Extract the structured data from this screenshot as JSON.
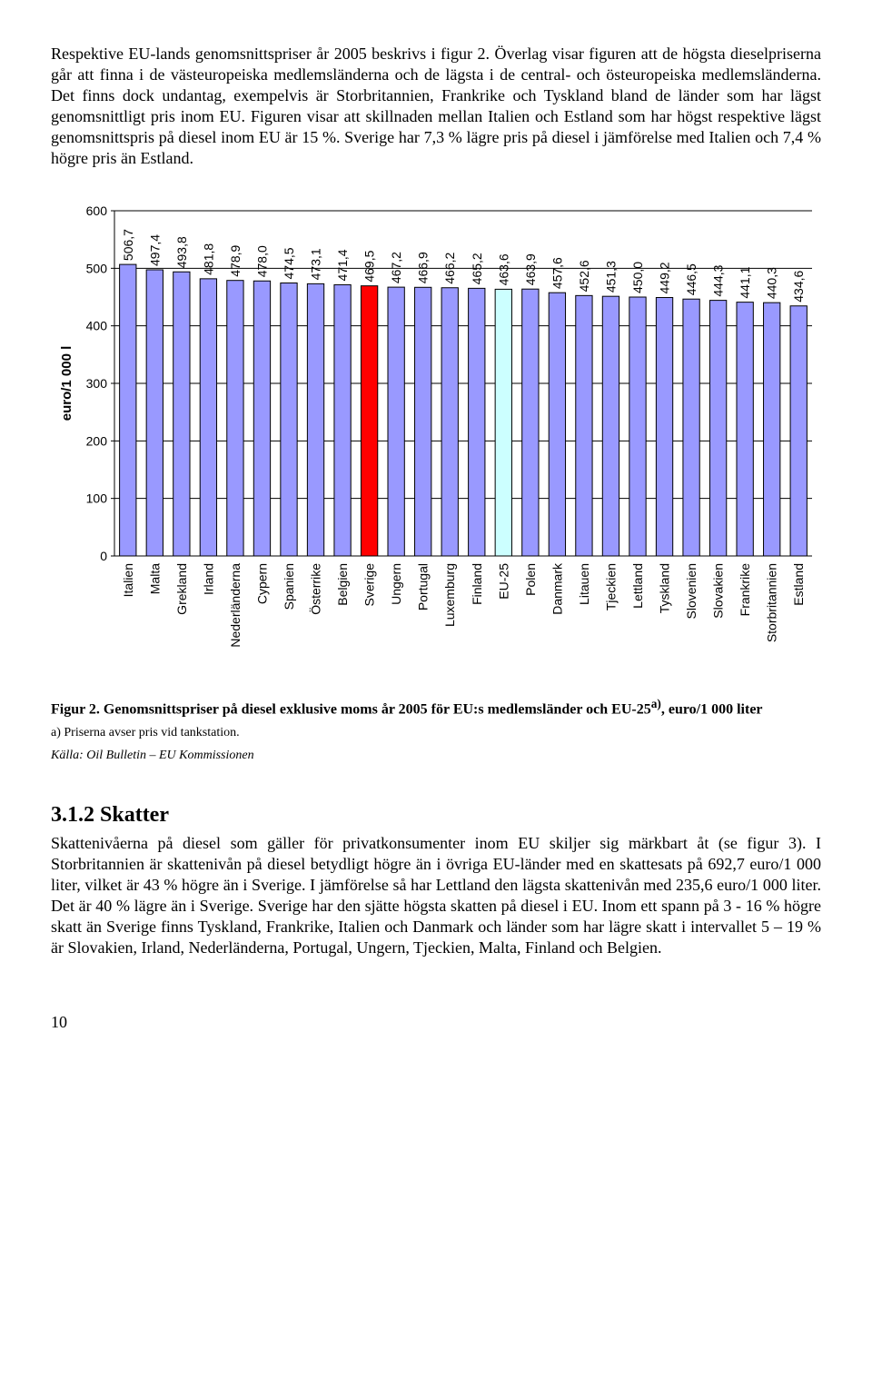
{
  "paragraph1": "Respektive EU-lands genomsnittspriser år 2005 beskrivs i figur 2. Överlag visar figuren att de högsta dieselpriserna går att finna i de västeuropeiska medlemsländerna och de lägsta i de central- och östeuropeiska medlemsländerna. Det finns dock undantag, exempelvis är Storbritannien, Frankrike och Tyskland bland de länder som har lägst genomsnittligt pris inom EU. Figuren visar att skillnaden mellan Italien och Estland som har högst respektive lägst genomsnittspris på diesel inom EU är 15 %. Sverige har 7,3 % lägre pris på diesel i jämförelse med Italien och 7,4 % högre pris än Estland.",
  "chart": {
    "type": "bar",
    "y_title": "euro/1 000 l",
    "ylim": [
      0,
      600
    ],
    "ytick_step": 100,
    "yticks": [
      "0",
      "100",
      "200",
      "300",
      "400",
      "500",
      "600"
    ],
    "background_color": "#ffffff",
    "grid_color": "#000000",
    "bar_fill_default": "#9999ff",
    "bar_fill_highlight1": "#ff0000",
    "bar_fill_highlight2": "#ccffff",
    "bar_border": "#000000",
    "value_fontsize": 14,
    "cat_fontsize": 14,
    "tick_fontsize": 14,
    "y_title_fontsize": 15,
    "bars": [
      {
        "label": "Italien",
        "value": 506.7,
        "value_text": "506,7",
        "fill": "#9999ff"
      },
      {
        "label": "Malta",
        "value": 497.4,
        "value_text": "497,4",
        "fill": "#9999ff"
      },
      {
        "label": "Grekland",
        "value": 493.8,
        "value_text": "493,8",
        "fill": "#9999ff"
      },
      {
        "label": "Irland",
        "value": 481.8,
        "value_text": "481,8",
        "fill": "#9999ff"
      },
      {
        "label": "Nederländerna",
        "value": 478.9,
        "value_text": "478,9",
        "fill": "#9999ff"
      },
      {
        "label": "Cypern",
        "value": 478.0,
        "value_text": "478,0",
        "fill": "#9999ff"
      },
      {
        "label": "Spanien",
        "value": 474.5,
        "value_text": "474,5",
        "fill": "#9999ff"
      },
      {
        "label": "Österrike",
        "value": 473.1,
        "value_text": "473,1",
        "fill": "#9999ff"
      },
      {
        "label": "Belgien",
        "value": 471.4,
        "value_text": "471,4",
        "fill": "#9999ff"
      },
      {
        "label": "Sverige",
        "value": 469.5,
        "value_text": "469,5",
        "fill": "#ff0000"
      },
      {
        "label": "Ungern",
        "value": 467.2,
        "value_text": "467,2",
        "fill": "#9999ff"
      },
      {
        "label": "Portugal",
        "value": 466.9,
        "value_text": "466,9",
        "fill": "#9999ff"
      },
      {
        "label": "Luxemburg",
        "value": 466.2,
        "value_text": "466,2",
        "fill": "#9999ff"
      },
      {
        "label": "Finland",
        "value": 465.2,
        "value_text": "465,2",
        "fill": "#9999ff"
      },
      {
        "label": "EU-25",
        "value": 463.6,
        "value_text": "463,6",
        "fill": "#ccffff"
      },
      {
        "label": "Polen",
        "value": 463.9,
        "value_text": "463,9",
        "fill": "#9999ff"
      },
      {
        "label": "Danmark",
        "value": 457.6,
        "value_text": "457,6",
        "fill": "#9999ff"
      },
      {
        "label": "Litauen",
        "value": 452.6,
        "value_text": "452,6",
        "fill": "#9999ff"
      },
      {
        "label": "Tjeckien",
        "value": 451.3,
        "value_text": "451,3",
        "fill": "#9999ff"
      },
      {
        "label": "Lettland",
        "value": 450.0,
        "value_text": "450,0",
        "fill": "#9999ff"
      },
      {
        "label": "Tyskland",
        "value": 449.2,
        "value_text": "449,2",
        "fill": "#9999ff"
      },
      {
        "label": "Slovenien",
        "value": 446.5,
        "value_text": "446,5",
        "fill": "#9999ff"
      },
      {
        "label": "Slovakien",
        "value": 444.3,
        "value_text": "444,3",
        "fill": "#9999ff"
      },
      {
        "label": "Frankrike",
        "value": 441.1,
        "value_text": "441,1",
        "fill": "#9999ff"
      },
      {
        "label": "Storbritannien",
        "value": 440.3,
        "value_text": "440,3",
        "fill": "#9999ff"
      },
      {
        "label": "Estland",
        "value": 434.6,
        "value_text": "434,6",
        "fill": "#9999ff"
      }
    ]
  },
  "caption_bold": "Figur 2. Genomsnittspriser på diesel exklusive moms år 2005 för EU:s medlemsländer och EU-25",
  "caption_sup": "a)",
  "caption_tail": ", euro/1 000 liter",
  "footnote_a": "a) Priserna avser pris vid tankstation.",
  "footnote_src": "Källa: Oil Bulletin – EU Kommissionen",
  "section_heading": "3.1.2  Skatter",
  "paragraph2": "Skattenivåerna på diesel som gäller för privatkonsumenter inom EU skiljer sig märkbart åt (se figur 3). I Storbritannien är skattenivån på diesel betydligt högre än i övriga EU-länder med en skattesats på 692,7 euro/1 000 liter, vilket är 43 % högre än i Sverige. I jämförelse så har Lettland den lägsta skattenivån med 235,6 euro/1 000 liter. Det är 40 % lägre än i Sverige. Sverige har den sjätte högsta skatten på diesel i EU. Inom ett spann på 3 - 16 % högre skatt än Sverige finns Tyskland, Frankrike, Italien och Danmark och länder som har lägre skatt i intervallet 5 – 19 % är Slovakien, Irland, Nederländerna, Portugal, Ungern, Tjeckien, Malta, Finland och Belgien.",
  "page_number": "10"
}
